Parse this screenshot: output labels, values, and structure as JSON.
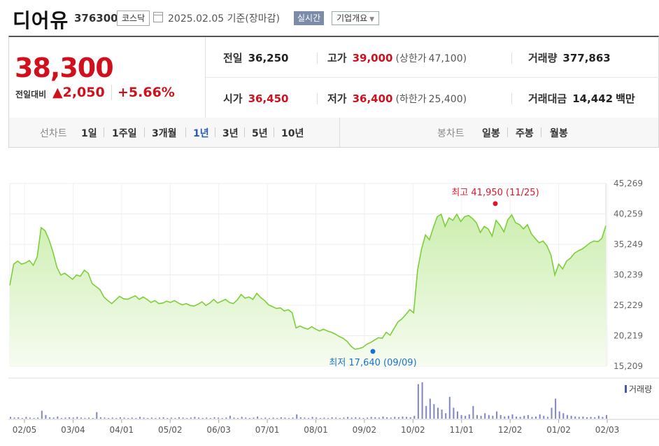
{
  "header": {
    "name": "디어유",
    "code": "376300",
    "market": "코스닥",
    "date": "2025.02.05  기준(장마감)",
    "realtime": "실시간",
    "corp_info": "기업개요"
  },
  "quote": {
    "price": "38,300",
    "change_label": "전일대비",
    "change": "▲2,050",
    "change_pct": "+5.66%",
    "prev_label": "전일",
    "prev": "36,250",
    "high_label": "고가",
    "high": "39,000",
    "upper_label": "(상한가",
    "upper": "47,100)",
    "volume_label": "거래량",
    "volume": "377,863",
    "open_label": "시가",
    "open": "36,450",
    "low_label": "저가",
    "low": "36,400",
    "lower_label": "(하한가",
    "lower": "25,400)",
    "value_label": "거래대금",
    "value": "14,442",
    "value_unit": "백만"
  },
  "tabs": {
    "line_label": "선차트",
    "line": [
      "1일",
      "1주일",
      "3개월",
      "1년",
      "3년",
      "5년",
      "10년"
    ],
    "active": "1년",
    "candle_label": "봉차트",
    "candle": [
      "일봉",
      "주봉",
      "월봉"
    ]
  },
  "chart_data": {
    "type": "area",
    "y_ticks": [
      "45,269",
      "40,259",
      "35,249",
      "30,239",
      "25,229",
      "20,219",
      "15,209"
    ],
    "ylim": [
      15209,
      45269
    ],
    "x_ticks": [
      "02/05",
      "03/04",
      "04/01",
      "05/02",
      "06/03",
      "07/01",
      "08/01",
      "09/02",
      "10/02",
      "11/01",
      "12/02",
      "01/02",
      "02/03"
    ],
    "max_annotation": "최고 41,950 (11/25)",
    "min_annotation": "최저 17,640 (09/09)",
    "max_value": 41950,
    "min_value": 17640,
    "volume_label": "거래량",
    "colors": {
      "line": "#7ccf3a",
      "fill_top": "#d4f1b8",
      "max": "#e0162b",
      "min": "#1a73c8"
    },
    "price": [
      28500,
      32000,
      32500,
      32000,
      32200,
      32600,
      31800,
      33200,
      38000,
      37500,
      36000,
      34000,
      31500,
      30200,
      30500,
      30000,
      29500,
      30200,
      30000,
      31000,
      30500,
      28800,
      28300,
      27800,
      26600,
      26000,
      25500,
      26100,
      26700,
      26300,
      26200,
      26500,
      26800,
      26200,
      26600,
      26200,
      25700,
      26000,
      25500,
      25600,
      25900,
      25700,
      26000,
      25600,
      25300,
      25500,
      25200,
      25100,
      25400,
      25800,
      25200,
      25600,
      26200,
      25600,
      25900,
      26200,
      25700,
      25500,
      26100,
      27000,
      26400,
      26600,
      26200,
      27200,
      26500,
      26000,
      25300,
      25000,
      24700,
      24800,
      24300,
      24500,
      24000,
      21500,
      21800,
      21500,
      21300,
      21700,
      21300,
      21000,
      21300,
      21000,
      20800,
      20500,
      20100,
      19800,
      19300,
      18500,
      18000,
      18100,
      18300,
      18800,
      19100,
      19500,
      19900,
      19800,
      20800,
      20300,
      21400,
      22500,
      23000,
      23700,
      24500,
      24000,
      31000,
      34500,
      36800,
      36000,
      38000,
      39800,
      40200,
      38200,
      39600,
      39200,
      40200,
      39000,
      39800,
      40000,
      39500,
      38800,
      37200,
      38200,
      37800,
      36600,
      39200,
      38400,
      37300,
      39300,
      40100,
      38800,
      38500,
      37800,
      38500,
      37000,
      36200,
      35500,
      35800,
      35000,
      33500,
      30200,
      32000,
      31200,
      32500,
      33000,
      33800,
      34200,
      34500,
      35000,
      35500,
      35800,
      35700,
      36250,
      38300
    ],
    "volume": [
      0.05,
      0.03,
      0.04,
      0.02,
      0.05,
      0.03,
      0.02,
      0.03,
      0.22,
      0.1,
      0.04,
      0.03,
      0.06,
      0.02,
      0.03,
      0.04,
      0.03,
      0.05,
      0.03,
      0.02,
      0.03,
      0.02,
      0.18,
      0.04,
      0.03,
      0.02,
      0.03,
      0.02,
      0.04,
      0.03,
      0.02,
      0.03,
      0.02,
      0.05,
      0.03,
      0.02,
      0.03,
      0.02,
      0.03,
      0.04,
      0.02,
      0.03,
      0.02,
      0.04,
      0.03,
      0.02,
      0.03,
      0.05,
      0.03,
      0.02,
      0.03,
      0.02,
      0.04,
      0.03,
      0.02,
      0.03,
      0.08,
      0.03,
      0.02,
      0.05,
      0.03,
      0.02,
      0.03,
      0.06,
      0.02,
      0.03,
      0.02,
      0.03,
      0.02,
      0.04,
      0.03,
      0.02,
      0.03,
      0.12,
      0.04,
      0.03,
      0.02,
      0.05,
      0.03,
      0.02,
      0.03,
      0.02,
      0.04,
      0.03,
      0.02,
      0.03,
      0.05,
      0.03,
      0.04,
      0.03,
      0.02,
      0.03,
      0.05,
      0.04,
      0.03,
      0.06,
      0.04,
      0.03,
      0.05,
      0.04,
      0.06,
      0.05,
      0.04,
      0.08,
      0.95,
      1.0,
      0.35,
      0.55,
      0.4,
      0.3,
      0.25,
      0.15,
      0.6,
      0.3,
      0.2,
      0.1,
      0.08,
      0.12,
      0.35,
      0.1,
      0.08,
      0.15,
      0.1,
      0.08,
      0.2,
      0.1,
      0.06,
      0.08,
      0.12,
      0.06,
      0.05,
      0.08,
      0.1,
      0.05,
      0.06,
      0.12,
      0.08,
      0.05,
      0.3,
      0.55,
      0.2,
      0.15,
      0.1,
      0.08,
      0.06,
      0.05,
      0.06,
      0.04,
      0.05,
      0.04,
      0.08,
      0.05,
      0.1
    ]
  }
}
